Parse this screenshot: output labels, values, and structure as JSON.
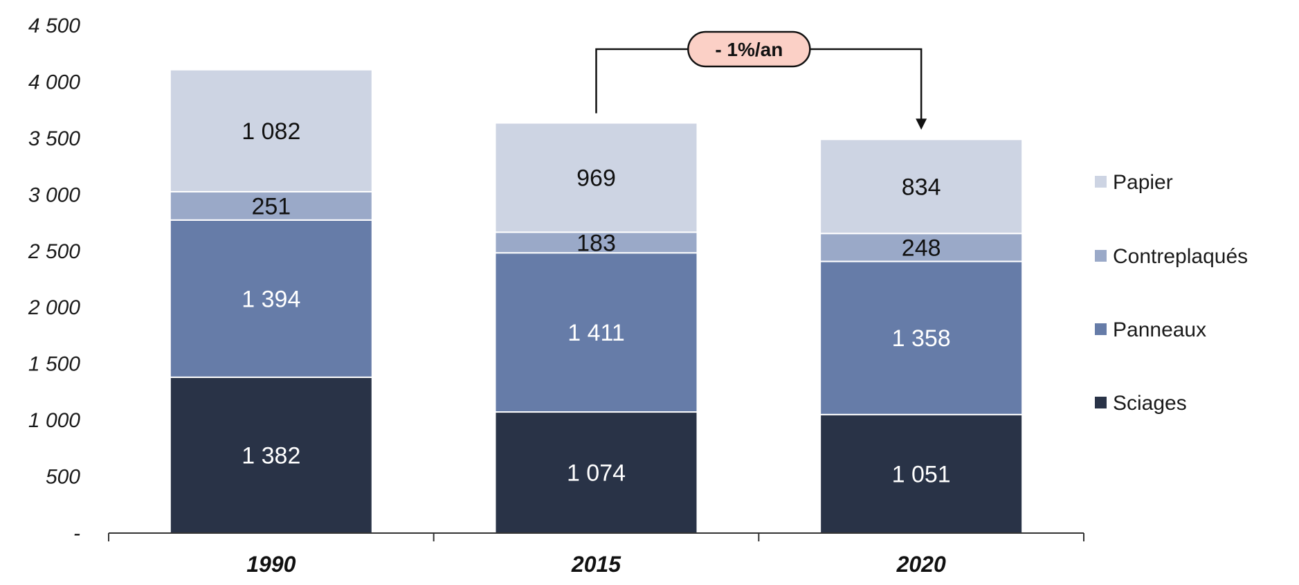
{
  "chart_data": {
    "type": "bar",
    "stacked": true,
    "categories": [
      "1990",
      "2015",
      "2020"
    ],
    "series": [
      {
        "name": "Sciages",
        "values": [
          1382,
          1074,
          1051
        ],
        "color": "#293347",
        "label_color": "#ffffff"
      },
      {
        "name": "Panneaux",
        "values": [
          1394,
          1411,
          1358
        ],
        "color": "#667ca8",
        "label_color": "#ffffff"
      },
      {
        "name": "Contreplaqués",
        "values": [
          251,
          183,
          248
        ],
        "color": "#9aa9c8",
        "label_color": "#111111"
      },
      {
        "name": "Papier",
        "values": [
          1082,
          969,
          834
        ],
        "color": "#cdd4e3",
        "label_color": "#111111"
      }
    ],
    "data_labels": [
      [
        "1 382",
        "1 074",
        "1 051"
      ],
      [
        "1 394",
        "1 411",
        "1 358"
      ],
      [
        "251",
        "183",
        "248"
      ],
      [
        "1 082",
        "969",
        "834"
      ]
    ],
    "ylim": [
      0,
      4500
    ],
    "y_ticks": [
      0,
      500,
      1000,
      1500,
      2000,
      2500,
      3000,
      3500,
      4000,
      4500
    ],
    "y_tick_labels": [
      "-",
      "500",
      "1 000",
      "1 500",
      "2 000",
      "2 500",
      "3 000",
      "3 500",
      "4 000",
      "4 500"
    ],
    "grid": false,
    "legend_position": "right",
    "annotation": {
      "text": "- 1%/an",
      "from": "2015",
      "to": "2020",
      "fill": "#fbd0c6"
    },
    "title": "",
    "xlabel": "",
    "ylabel": ""
  }
}
